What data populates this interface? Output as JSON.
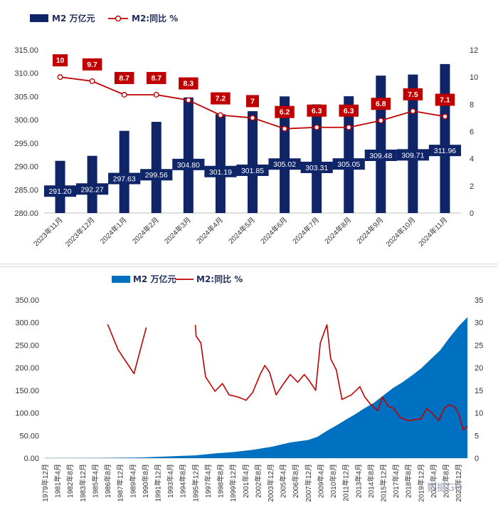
{
  "chart_data": [
    {
      "type": "bar+line",
      "title": "",
      "legend": [
        "M2 万亿元",
        "M2:同比 %"
      ],
      "legend_position": "top-left",
      "categories": [
        "2023年11月",
        "2023年12月",
        "2024年1月",
        "2024年2月",
        "2024年3月",
        "2024年4月",
        "2024年5月",
        "2024年6月",
        "2024年7月",
        "2024年8月",
        "2024年9月",
        "2024年10月",
        "2024年11月"
      ],
      "series": [
        {
          "name": "M2 万亿元",
          "type": "bar",
          "axis": "left",
          "values": [
            291.2,
            292.27,
            297.63,
            299.56,
            304.8,
            301.19,
            301.85,
            305.02,
            303.31,
            305.05,
            309.48,
            309.71,
            311.96
          ],
          "labels": [
            "291.20",
            "292.27",
            "297.63",
            "299.56",
            "304.80",
            "301.19",
            "301.85",
            "305.02",
            "303.31",
            "305.05",
            "309.48",
            "309.71",
            "311.96"
          ]
        },
        {
          "name": "M2:同比 %",
          "type": "line",
          "axis": "right",
          "values": [
            10,
            9.7,
            8.7,
            8.7,
            8.3,
            7.2,
            7,
            6.2,
            6.3,
            6.3,
            6.8,
            7.5,
            7.1
          ],
          "labels": [
            "10",
            "9.7",
            "8.7",
            "8.7",
            "8.3",
            "7.2",
            "7",
            "6.2",
            "6.3",
            "6.3",
            "6.8",
            "7.5",
            "7.1"
          ]
        }
      ],
      "ylim_left": [
        280,
        315
      ],
      "yticks_left": [
        "280.00",
        "285.00",
        "290.00",
        "295.00",
        "300.00",
        "305.00",
        "310.00",
        "315.00"
      ],
      "ylim_right": [
        0,
        12
      ],
      "yticks_right": [
        "0",
        "2",
        "4",
        "6",
        "8",
        "10",
        "12"
      ],
      "colors": {
        "bar": "#0f2567",
        "line": "#c00000",
        "label_box": "#c00000"
      }
    },
    {
      "type": "area+line",
      "title": "",
      "legend": [
        "M2 万亿元",
        "M2:同比 %"
      ],
      "legend_position": "top-center",
      "x_tick_labels": [
        "1979年12月",
        "1981年4月",
        "1982年8月",
        "1983年12月",
        "1985年4月",
        "1986年8月",
        "1987年12月",
        "1989年4月",
        "1990年8月",
        "1991年12月",
        "1993年4月",
        "1994年8月",
        "1995年12月",
        "1997年4月",
        "1998年8月",
        "1999年12月",
        "2001年4月",
        "2002年8月",
        "2003年12月",
        "2005年4月",
        "2006年8月",
        "2007年12月",
        "2009年4月",
        "2010年8月",
        "2011年12月",
        "2013年4月",
        "2014年8月",
        "2015年12月",
        "2017年4月",
        "2018年8月",
        "2019年12月",
        "2021年4月",
        "2022年8月",
        "2023年12月"
      ],
      "series": [
        {
          "name": "M2 万亿元",
          "type": "area",
          "axis": "left",
          "points": [
            [
              1979.92,
              0.1
            ],
            [
              1985.0,
              0.4
            ],
            [
              1990.0,
              1.4
            ],
            [
              1995.92,
              6.1
            ],
            [
              1998.0,
              10.4
            ],
            [
              2000.0,
              13.5
            ],
            [
              2002.0,
              18.3
            ],
            [
              2004.0,
              25.0
            ],
            [
              2006.0,
              34.6
            ],
            [
              2007.92,
              40.3
            ],
            [
              2008.92,
              47.5
            ],
            [
              2009.92,
              60.6
            ],
            [
              2010.92,
              72.6
            ],
            [
              2011.92,
              85.2
            ],
            [
              2012.92,
              97.4
            ],
            [
              2013.92,
              110.7
            ],
            [
              2014.92,
              122.8
            ],
            [
              2015.92,
              139.2
            ],
            [
              2016.92,
              155.0
            ],
            [
              2017.92,
              167.7
            ],
            [
              2018.92,
              182.7
            ],
            [
              2019.92,
              198.6
            ],
            [
              2020.92,
              218.7
            ],
            [
              2021.92,
              238.3
            ],
            [
              2022.92,
              266.4
            ],
            [
              2023.92,
              292.3
            ],
            [
              2024.83,
              312.0
            ]
          ]
        },
        {
          "name": "M2:同比 %",
          "type": "line",
          "axis": "right",
          "segments": [
            [
              [
                1986.6,
                29.6
              ],
              [
                1987.7,
                24
              ],
              [
                1989.4,
                18.7
              ],
              [
                1990.7,
                28.9
              ]
            ],
            [
              [
                1995.92,
                29.5
              ],
              [
                1996.0,
                27.0
              ],
              [
                1996.5,
                25.5
              ],
              [
                1997.0,
                18.0
              ],
              [
                1998.0,
                14.8
              ],
              [
                1998.8,
                16.5
              ],
              [
                1999.5,
                14.0
              ],
              [
                2000.5,
                13.5
              ],
              [
                2001.3,
                12.8
              ],
              [
                2002.0,
                14.5
              ],
              [
                2002.8,
                18.5
              ],
              [
                2003.3,
                20.5
              ],
              [
                2003.8,
                19.0
              ],
              [
                2004.5,
                14.0
              ],
              [
                2005.3,
                16.5
              ],
              [
                2006.0,
                18.5
              ],
              [
                2006.8,
                16.8
              ],
              [
                2007.5,
                18.5
              ],
              [
                2008.0,
                17.2
              ],
              [
                2008.7,
                15.0
              ],
              [
                2009.2,
                25.5
              ],
              [
                2009.9,
                29.5
              ],
              [
                2010.3,
                22.0
              ],
              [
                2010.9,
                19.5
              ],
              [
                2011.5,
                13.0
              ],
              [
                2012.5,
                14.0
              ],
              [
                2013.4,
                15.8
              ],
              [
                2013.9,
                13.6
              ],
              [
                2014.5,
                12.0
              ],
              [
                2015.3,
                10.5
              ],
              [
                2015.8,
                13.5
              ],
              [
                2016.4,
                11.5
              ],
              [
                2017.0,
                11.0
              ],
              [
                2017.7,
                9.0
              ],
              [
                2018.5,
                8.3
              ],
              [
                2019.3,
                8.5
              ],
              [
                2019.9,
                8.7
              ],
              [
                2020.5,
                11.0
              ],
              [
                2021.0,
                10.1
              ],
              [
                2021.8,
                8.3
              ],
              [
                2022.4,
                11.1
              ],
              [
                2022.9,
                11.8
              ],
              [
                2023.5,
                11.3
              ],
              [
                2023.92,
                9.7
              ],
              [
                2024.4,
                6.2
              ],
              [
                2024.83,
                7.1
              ]
            ]
          ]
        }
      ],
      "ylim_left": [
        0,
        350
      ],
      "yticks_left": [
        "0.00",
        "50.00",
        "100.00",
        "150.00",
        "200.00",
        "250.00",
        "300.00",
        "350.00"
      ],
      "ylim_right": [
        0,
        35
      ],
      "yticks_right": [
        "0",
        "5",
        "10",
        "15",
        "20",
        "25",
        "30",
        "35"
      ],
      "colors": {
        "area": "#0070c0",
        "line": "#c00000"
      }
    }
  ],
  "watermark": {
    "text": "数据GO"
  }
}
